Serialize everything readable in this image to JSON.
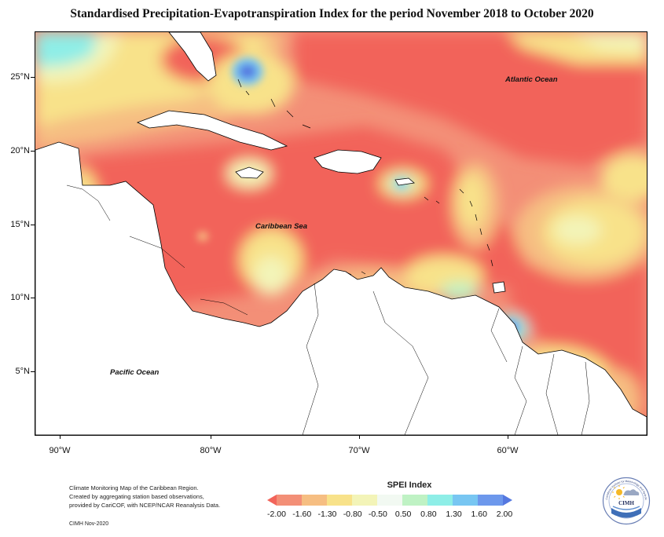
{
  "title": "Standardised Precipitation-Evapotranspiration Index for the period November 2018 to October 2020",
  "map": {
    "lat_labels": [
      "25°N",
      "20°N",
      "15°N",
      "10°N",
      "5°N"
    ],
    "lon_labels": [
      "90°W",
      "80°W",
      "70°W",
      "60°W"
    ],
    "ocean_labels": {
      "atlantic": "Atlantic Ocean",
      "caribbean": "Caribbean Sea",
      "pacific": "Pacific Ocean"
    }
  },
  "legend": {
    "title": "SPEI Index",
    "values": [
      "-2.00",
      "-1.60",
      "-1.30",
      "-0.80",
      "-0.50",
      "0.50",
      "0.80",
      "1.30",
      "1.60",
      "2.00"
    ],
    "colors": [
      "#f2645a",
      "#f38f77",
      "#f6be82",
      "#f8e28a",
      "#f3f4b8",
      "#f2f9f2",
      "#bff2c4",
      "#8eeee7",
      "#78c6f2",
      "#6d98ec",
      "#5578e0"
    ]
  },
  "notes": {
    "line1": "Climate Monitoring Map of the Caribbean Region.",
    "line2": "Created by aggregating station based observations,",
    "line3": "provided by CariCOF, with NCEP/NCAR Reanalysis Data.",
    "credit": "CIMH Nov-2020"
  },
  "logo": {
    "text": "CIMH",
    "ring_text": "Caribbean Institute for Meteorology and Hydrology"
  }
}
